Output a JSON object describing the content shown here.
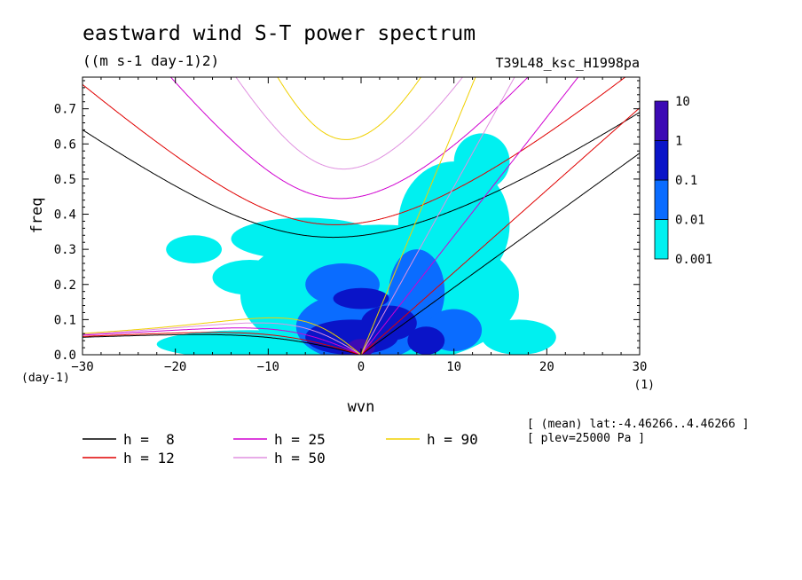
{
  "header": {
    "title": "eastward wind S-T power spectrum",
    "units": "((m s-1 day-1)2)",
    "run_id": "T39L48_ksc_H1998pa"
  },
  "info": {
    "line1": "[ (mean) lat:-4.46266..4.46266 ]",
    "line2": "[ plev=25000 Pa ]"
  },
  "chart_data": {
    "type": "heatmap",
    "title": "eastward wind S-T power spectrum",
    "subtitle": "((m s-1 day-1)2)",
    "xlabel": "wvn",
    "ylabel": "freq",
    "x_unit": "(1)",
    "y_unit": "(day-1)",
    "xlim": [
      -30,
      30
    ],
    "ylim": [
      0,
      0.79
    ],
    "x_ticks": [
      -30,
      -20,
      -10,
      0,
      10,
      20,
      30
    ],
    "y_ticks": [
      0.0,
      0.1,
      0.2,
      0.3,
      0.4,
      0.5,
      0.6,
      0.7
    ],
    "colorbar": {
      "levels": [
        "0.001",
        "0.01",
        "0.1",
        "1",
        "10"
      ],
      "colors": [
        "#00f0f0",
        "#0a6cff",
        "#0a14c8",
        "#3c0ab4"
      ]
    },
    "power_patches": [
      {
        "level": 1,
        "cx": 2,
        "cy": 0.17,
        "rx": 15,
        "ry": 0.2
      },
      {
        "level": 1,
        "cx": -12,
        "cy": 0.03,
        "rx": 10,
        "ry": 0.04
      },
      {
        "level": 1,
        "cx": 10,
        "cy": 0.37,
        "rx": 6,
        "ry": 0.18
      },
      {
        "level": 1,
        "cx": -6,
        "cy": 0.33,
        "rx": 8,
        "ry": 0.06
      },
      {
        "level": 1,
        "cx": -18,
        "cy": 0.3,
        "rx": 3,
        "ry": 0.04
      },
      {
        "level": 1,
        "cx": -12,
        "cy": 0.22,
        "rx": 4,
        "ry": 0.05
      },
      {
        "level": 1,
        "cx": 17,
        "cy": 0.05,
        "rx": 4,
        "ry": 0.05
      },
      {
        "level": 1,
        "cx": 13,
        "cy": 0.55,
        "rx": 3,
        "ry": 0.08
      },
      {
        "level": 2,
        "cx": 0,
        "cy": 0.08,
        "rx": 7,
        "ry": 0.1
      },
      {
        "level": 2,
        "cx": -2,
        "cy": 0.2,
        "rx": 4,
        "ry": 0.06
      },
      {
        "level": 2,
        "cx": 6,
        "cy": 0.18,
        "rx": 3,
        "ry": 0.12
      },
      {
        "level": 2,
        "cx": 10,
        "cy": 0.07,
        "rx": 3,
        "ry": 0.06
      },
      {
        "level": 3,
        "cx": -1,
        "cy": 0.05,
        "rx": 5,
        "ry": 0.05
      },
      {
        "level": 3,
        "cx": 3,
        "cy": 0.09,
        "rx": 3,
        "ry": 0.05
      },
      {
        "level": 3,
        "cx": 0,
        "cy": 0.16,
        "rx": 3,
        "ry": 0.03
      },
      {
        "level": 3,
        "cx": 7,
        "cy": 0.04,
        "rx": 2,
        "ry": 0.04
      },
      {
        "level": 4,
        "cx": 0,
        "cy": 0.02,
        "rx": 1.5,
        "ry": 0.025
      }
    ],
    "series": [
      {
        "name": "h =  8",
        "h": 8,
        "color": "#000000"
      },
      {
        "name": "h = 12",
        "h": 12,
        "color": "#e00000"
      },
      {
        "name": "h = 25",
        "h": 25,
        "color": "#d000d0"
      },
      {
        "name": "h = 50",
        "h": 50,
        "color": "#e090e0"
      },
      {
        "name": "h = 90",
        "h": 90,
        "color": "#f0d000"
      }
    ]
  }
}
